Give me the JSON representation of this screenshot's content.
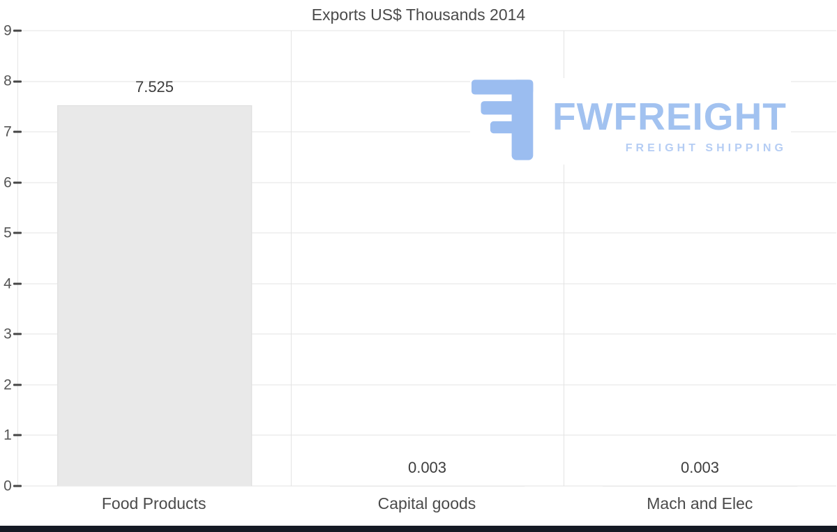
{
  "chart_data": {
    "type": "bar",
    "title": "Exports US$ Thousands 2014",
    "categories": [
      "Food Products",
      "Capital goods",
      "Mach and Elec"
    ],
    "values": [
      7.525,
      0.003,
      0.003
    ],
    "value_labels": [
      "7.525",
      "0.003",
      "0.003"
    ],
    "xlabel": "",
    "ylabel": "",
    "ylim": [
      0,
      9
    ],
    "yticks": [
      0,
      1,
      2,
      3,
      4,
      5,
      6,
      7,
      8,
      9
    ],
    "grid": "horizontal-and-category-separators",
    "legend": "none",
    "bar_color": "#e9e9e9",
    "bar_border_color": "#dedede",
    "grid_color": "#e3e3e3",
    "tick_color": "#454545",
    "text_color": "#4a4a4a"
  },
  "watermark": {
    "brand": "FWFREIGHT",
    "tagline": "FREIGHT SHIPPING",
    "brand_color": "#a2c2f0",
    "tagline_color": "#b5cdf4",
    "icon_color": "#9bbdf0"
  },
  "page": {
    "background": "#ffffff",
    "footer_bar_color": "#151a24"
  }
}
